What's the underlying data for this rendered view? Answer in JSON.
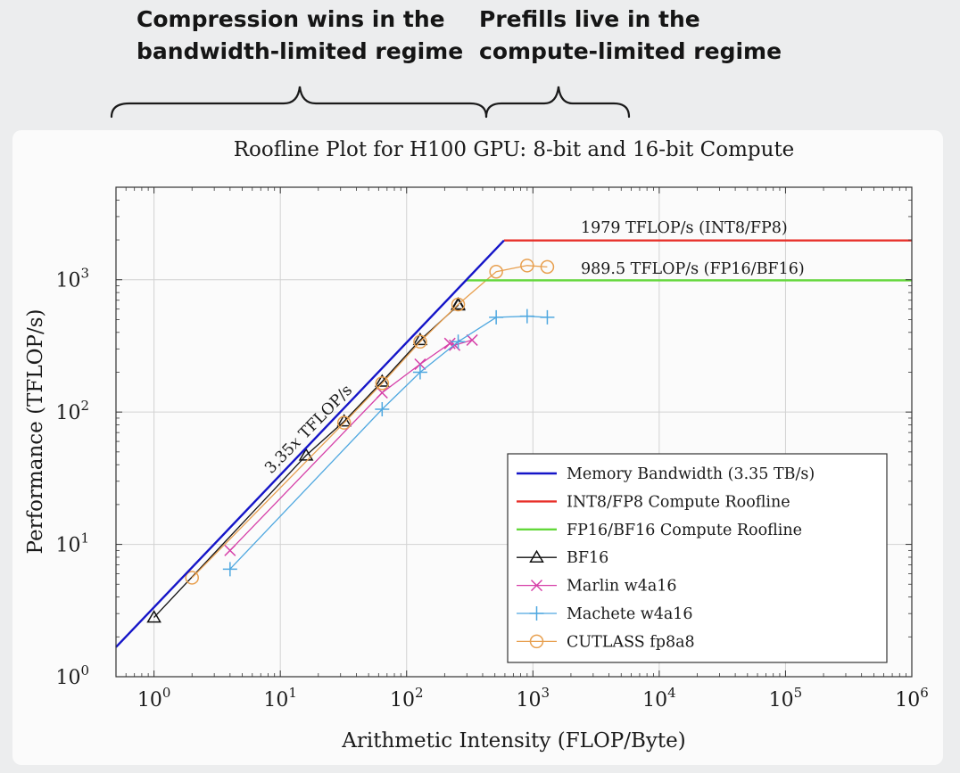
{
  "annotations": {
    "left_line1": "Compression wins in the",
    "left_line2": "bandwidth-limited regime",
    "right_line1": "Prefills live in the",
    "right_line2": "compute-limited regime"
  },
  "chart_data": {
    "type": "line",
    "title": "Roofline Plot for H100 GPU: 8-bit and 16-bit Compute",
    "xlabel": "Arithmetic Intensity (FLOP/Byte)",
    "ylabel": "Performance (TFLOP/s)",
    "xscale": "log",
    "yscale": "log",
    "xlim": [
      0.5,
      1000000
    ],
    "ylim": [
      1,
      5000
    ],
    "grid": true,
    "legend_position": "bottom-right",
    "x_ticks": [
      {
        "base": "10",
        "exp": "0",
        "value": 1
      },
      {
        "base": "10",
        "exp": "1",
        "value": 10
      },
      {
        "base": "10",
        "exp": "2",
        "value": 100
      },
      {
        "base": "10",
        "exp": "3",
        "value": 1000
      },
      {
        "base": "10",
        "exp": "4",
        "value": 10000
      },
      {
        "base": "10",
        "exp": "5",
        "value": 100000
      },
      {
        "base": "10",
        "exp": "6",
        "value": 1000000
      }
    ],
    "y_ticks": [
      {
        "base": "10",
        "exp": "0",
        "value": 1
      },
      {
        "base": "10",
        "exp": "1",
        "value": 10
      },
      {
        "base": "10",
        "exp": "2",
        "value": 100
      },
      {
        "base": "10",
        "exp": "3",
        "value": 1000
      }
    ],
    "line_labels": {
      "int8": "1979 TFLOP/s (INT8/FP8)",
      "fp16": "989.5 TFLOP/s (FP16/BF16)",
      "bandwidth_prefix": "3.35",
      "bandwidth_var": "x",
      "bandwidth_suffix": " TFLOP/s"
    },
    "series": [
      {
        "name": "Memory Bandwidth (3.35 TB/s)",
        "color": "#1515c8",
        "marker": "none",
        "x": [
          0.5,
          590.7
        ],
        "y": [
          1.675,
          1979
        ]
      },
      {
        "name": "INT8/FP8 Compute Roofline",
        "color": "#e8302a",
        "marker": "none",
        "x": [
          590.7,
          1000000
        ],
        "y": [
          1979,
          1979
        ]
      },
      {
        "name": "FP16/BF16 Compute Roofline",
        "color": "#63d83a",
        "marker": "none",
        "x": [
          295.4,
          1000000
        ],
        "y": [
          989.5,
          989.5
        ]
      },
      {
        "name": "BF16",
        "color": "#111111",
        "marker": "triangle",
        "x": [
          1,
          16,
          32,
          64,
          128,
          256,
          256
        ],
        "y": [
          2.8,
          47,
          85,
          170,
          350,
          640,
          650
        ]
      },
      {
        "name": "Marlin w4a16",
        "color": "#d63fa8",
        "marker": "cross",
        "x": [
          4,
          64,
          128,
          220,
          240,
          330
        ],
        "y": [
          9,
          140,
          230,
          330,
          320,
          350
        ]
      },
      {
        "name": "Machete w4a16",
        "color": "#4fa8e0",
        "marker": "plus",
        "x": [
          4,
          64,
          128,
          256,
          512,
          900,
          1300
        ],
        "y": [
          6.5,
          105,
          200,
          340,
          520,
          530,
          520
        ]
      },
      {
        "name": "CUTLASS fp8a8",
        "color": "#e8a050",
        "marker": "circle",
        "x": [
          2,
          32,
          64,
          128,
          256,
          512,
          900,
          1300
        ],
        "y": [
          5.6,
          83,
          165,
          340,
          650,
          1150,
          1280,
          1250
        ]
      }
    ]
  }
}
